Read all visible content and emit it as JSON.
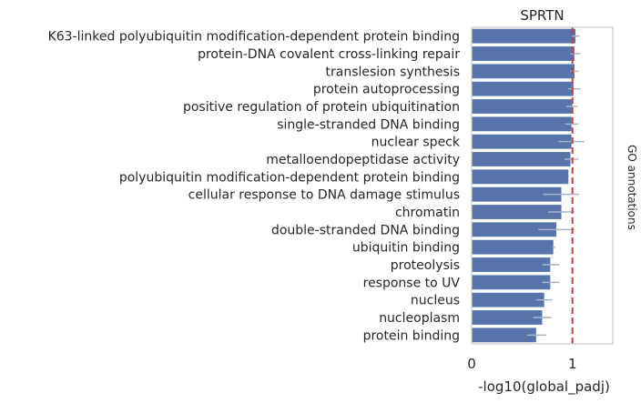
{
  "chart_data": {
    "type": "bar",
    "orientation": "horizontal",
    "title": "SPRTN",
    "xlabel": "-log10(global_padj)",
    "side_label": "GO annotations",
    "xlim": [
      0,
      1.4
    ],
    "xticks": [
      0,
      1
    ],
    "reference_line": 1.0,
    "categories": [
      "K63-linked polyubiquitin modification-dependent protein binding",
      "protein-DNA covalent cross-linking repair",
      "translesion synthesis",
      "protein autoprocessing",
      "positive regulation of protein ubiquitination",
      "single-stranded DNA binding",
      "nuclear speck",
      "metalloendopeptidase activity",
      "polyubiquitin modification-dependent protein binding",
      "cellular response to DNA damage stimulus",
      "chromatin",
      "double-stranded DNA binding",
      "ubiquitin binding",
      "proteolysis",
      "response to UV",
      "nucleus",
      "nucleoplasm",
      "protein binding"
    ],
    "values": [
      1.03,
      1.02,
      1.02,
      1.01,
      1.0,
      0.99,
      0.99,
      0.98,
      0.96,
      0.89,
      0.89,
      0.84,
      0.81,
      0.78,
      0.78,
      0.72,
      0.7,
      0.64
    ],
    "error_low": [
      1.0,
      0.98,
      0.98,
      0.96,
      0.94,
      0.93,
      0.86,
      0.92,
      0.96,
      0.71,
      0.76,
      0.66,
      0.8,
      0.7,
      0.7,
      0.64,
      0.61,
      0.55
    ],
    "error_high": [
      1.07,
      1.08,
      1.06,
      1.08,
      1.05,
      1.06,
      1.12,
      1.06,
      0.96,
      1.07,
      1.02,
      1.02,
      0.83,
      0.87,
      0.87,
      0.8,
      0.79,
      0.74
    ],
    "colors": {
      "bar": "#5875ab",
      "error": "#a9b4c8",
      "reference": "#c0443c",
      "frame": "#cccccc"
    },
    "grid": false
  }
}
